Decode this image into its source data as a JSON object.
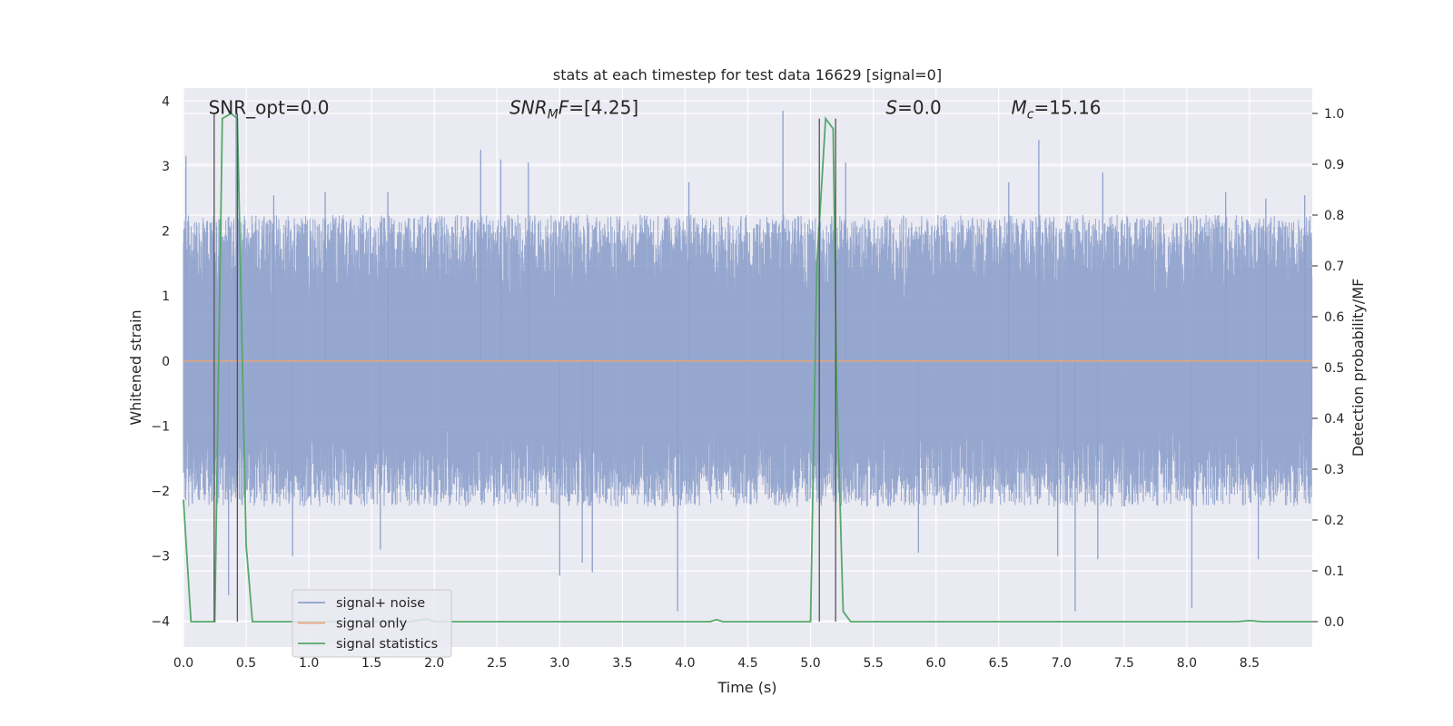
{
  "chart_data": {
    "type": "line",
    "title": "stats at each timestep for test data 16629 [signal=0]",
    "xlabel": "Time (s)",
    "ylabel_left": "Whitened strain",
    "ylabel_right": "Detection probability/MF",
    "xlim": [
      0.0,
      9.0
    ],
    "ylim_left": [
      -4.4,
      4.2
    ],
    "ylim_right": [
      -0.05,
      1.05
    ],
    "x_ticks": [
      0.0,
      0.5,
      1.0,
      1.5,
      2.0,
      2.5,
      3.0,
      3.5,
      4.0,
      4.5,
      5.0,
      5.5,
      6.0,
      6.5,
      7.0,
      7.5,
      8.0,
      8.5
    ],
    "x_tick_labels": [
      "0.0",
      "0.5",
      "1.0",
      "1.5",
      "2.0",
      "2.5",
      "3.0",
      "3.5",
      "4.0",
      "4.5",
      "5.0",
      "5.5",
      "6.0",
      "6.5",
      "7.0",
      "7.5",
      "8.0",
      "8.5"
    ],
    "y_left_ticks": [
      4,
      3,
      2,
      1,
      0,
      -1,
      -2,
      -3,
      -4
    ],
    "y_left_tick_labels": [
      "4",
      "3",
      "2",
      "1",
      "0",
      "−1",
      "−2",
      "−3",
      "−4"
    ],
    "y_right_ticks": [
      1.0,
      0.9,
      0.8,
      0.7,
      0.6,
      0.5,
      0.4,
      0.3,
      0.2,
      0.1,
      0.0
    ],
    "y_right_tick_labels": [
      "1.0",
      "0.9",
      "0.8",
      "0.7",
      "0.6",
      "0.5",
      "0.4",
      "0.3",
      "0.2",
      "0.1",
      "0.0"
    ],
    "grid": true,
    "legend_placement": "lower-left",
    "annotations": [
      {
        "label": "SNR_opt=0.0",
        "style": "plain",
        "x": 0.2,
        "y": 3.9
      },
      {
        "base": "SNR",
        "sub": "M",
        "rest": "F=[4.25]",
        "style": "italic-sub",
        "x": 2.6,
        "y": 3.9
      },
      {
        "base": "S",
        "sub": "",
        "rest": "=0.0",
        "style": "italic-sub",
        "x": 5.6,
        "y": 3.9
      },
      {
        "base": "M",
        "sub": "c",
        "rest": "=15.16",
        "style": "italic-sub",
        "x": 6.6,
        "y": 3.9
      }
    ],
    "vertical_markers": [
      {
        "x": 0.245,
        "y_top": 1.0
      },
      {
        "x": 0.43,
        "y_top": 1.0
      },
      {
        "x": 5.07,
        "y_top": 0.99
      },
      {
        "x": 5.2,
        "y_top": 0.99
      }
    ],
    "series": [
      {
        "name": "signal+ noise",
        "axis": "left",
        "color": "#8da0cb",
        "envelope": {
          "typical_max": 1.5,
          "typical_min": -1.6,
          "dt": 0.002,
          "seed": 16629
        },
        "spikes": [
          {
            "x": 0.02,
            "y": 3.15
          },
          {
            "x": 0.42,
            "y": 3.9
          },
          {
            "x": 0.36,
            "y": -3.6
          },
          {
            "x": 0.72,
            "y": 2.55
          },
          {
            "x": 0.87,
            "y": -3.0
          },
          {
            "x": 1.13,
            "y": 2.6
          },
          {
            "x": 1.57,
            "y": -2.9
          },
          {
            "x": 1.63,
            "y": 2.6
          },
          {
            "x": 2.37,
            "y": 3.25
          },
          {
            "x": 2.53,
            "y": 3.1
          },
          {
            "x": 2.75,
            "y": 3.05
          },
          {
            "x": 3.0,
            "y": -3.3
          },
          {
            "x": 3.18,
            "y": -3.1
          },
          {
            "x": 3.26,
            "y": -3.25
          },
          {
            "x": 3.94,
            "y": -3.85
          },
          {
            "x": 4.03,
            "y": 2.75
          },
          {
            "x": 4.78,
            "y": 3.85
          },
          {
            "x": 5.28,
            "y": 3.05
          },
          {
            "x": 5.86,
            "y": -2.95
          },
          {
            "x": 6.58,
            "y": 2.75
          },
          {
            "x": 6.82,
            "y": 3.4
          },
          {
            "x": 6.97,
            "y": -3.0
          },
          {
            "x": 7.11,
            "y": -3.85
          },
          {
            "x": 7.29,
            "y": -3.05
          },
          {
            "x": 7.33,
            "y": 2.9
          },
          {
            "x": 8.04,
            "y": -3.8
          },
          {
            "x": 8.31,
            "y": 2.6
          },
          {
            "x": 8.57,
            "y": -3.05
          },
          {
            "x": 8.63,
            "y": 2.5
          },
          {
            "x": 8.94,
            "y": 2.55
          }
        ]
      },
      {
        "name": "signal only",
        "axis": "left",
        "color": "#e5a57c",
        "x": [
          0.0,
          9.0
        ],
        "y": [
          0.0,
          0.0
        ]
      },
      {
        "name": "signal statistics",
        "axis": "right",
        "color": "#55a868",
        "x": [
          0.0,
          0.06,
          0.25,
          0.31,
          0.38,
          0.43,
          0.5,
          0.55,
          0.9,
          1.3,
          1.8,
          1.95,
          2.0,
          2.1,
          4.2,
          4.25,
          4.3,
          5.0,
          5.05,
          5.12,
          5.18,
          5.21,
          5.26,
          5.32,
          8.4,
          8.5,
          8.6,
          9.0
        ],
        "y": [
          0.24,
          0.0,
          0.0,
          0.99,
          1.0,
          0.99,
          0.15,
          0.0,
          0.0,
          0.0,
          0.0,
          0.005,
          0.0,
          0.0,
          0.0,
          0.004,
          0.0,
          0.0,
          0.7,
          0.99,
          0.97,
          0.45,
          0.02,
          0.0,
          0.0,
          0.002,
          0.0,
          0.0
        ]
      }
    ]
  }
}
